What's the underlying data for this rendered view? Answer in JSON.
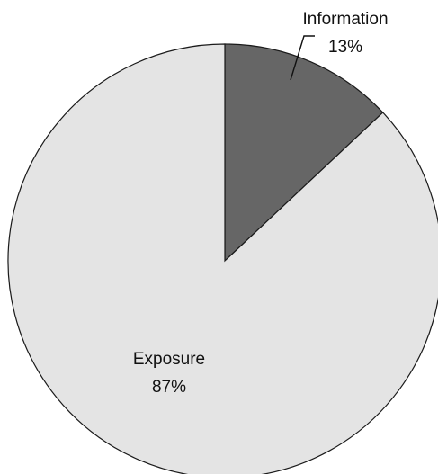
{
  "chart_data": {
    "type": "pie",
    "slices": [
      {
        "label": "Information",
        "value_label": "13%",
        "value": 13,
        "color": "#666666"
      },
      {
        "label": "Exposure",
        "value_label": "87%",
        "value": 87,
        "color": "#e4e4e4"
      }
    ],
    "start_angle_deg": 0,
    "direction": "clockwise"
  }
}
